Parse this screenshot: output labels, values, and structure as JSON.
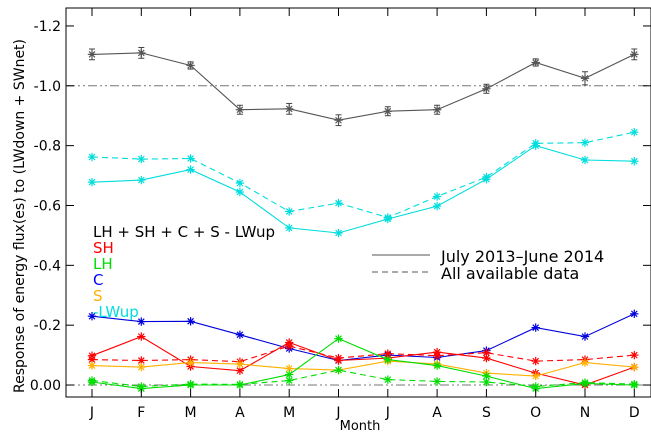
{
  "chart_data": {
    "type": "line",
    "xlabel": "Month",
    "ylabel": "Response of energy flux(es) to (LWdown + SWnet)",
    "categories": [
      "J",
      "F",
      "M",
      "A",
      "M",
      "J",
      "J",
      "A",
      "S",
      "O",
      "N",
      "D"
    ],
    "ylim": [
      0.04,
      -1.26
    ],
    "y_axis_reversed": true,
    "yticks": [
      0.0,
      -0.2,
      -0.4,
      -0.6,
      -0.8,
      -1.0,
      -1.2
    ],
    "ytick_labels": [
      "0.00",
      "-0.2",
      "-0.4",
      "-0.6",
      "-0.8",
      "-1.0",
      "-1.2"
    ],
    "reference_lines": [
      0.0,
      -1.0
    ],
    "grid": false,
    "legend": {
      "placement": "middle-left",
      "series_labels": [
        {
          "text": "LH + SH + C + S - LWup",
          "color": "#000000"
        },
        {
          "text": "SH",
          "color": "#ff0000"
        },
        {
          "text": "LH",
          "color": "#00dd00"
        },
        {
          "text": "C",
          "color": "#0000ff"
        },
        {
          "text": "S",
          "color": "#ffb000"
        },
        {
          "text": "-LWup",
          "color": "#00dddd"
        }
      ],
      "line_styles": [
        {
          "text": "July 2013–June 2014",
          "dash": "solid"
        },
        {
          "text": "All available data",
          "dash": "dashed"
        }
      ]
    },
    "series": [
      {
        "key": "total-solid",
        "color": "#555555",
        "dash": "solid",
        "values": [
          -1.105,
          -1.11,
          -1.068,
          -0.92,
          -0.923,
          -0.885,
          -0.915,
          -0.92,
          -0.99,
          -1.078,
          -1.025,
          -1.105
        ],
        "errors": [
          0.018,
          0.018,
          0.012,
          0.015,
          0.018,
          0.018,
          0.015,
          0.015,
          0.015,
          0.012,
          0.022,
          0.018
        ]
      },
      {
        "key": "lwup-solid",
        "color": "#00dddd",
        "dash": "solid",
        "values": [
          -0.678,
          -0.685,
          -0.72,
          -0.645,
          -0.525,
          -0.508,
          -0.555,
          -0.598,
          -0.688,
          -0.8,
          -0.752,
          -0.748
        ]
      },
      {
        "key": "lwup-dashed",
        "color": "#00dddd",
        "dash": "dashed",
        "values": [
          -0.762,
          -0.755,
          -0.757,
          -0.675,
          -0.58,
          -0.608,
          -0.56,
          -0.63,
          -0.695,
          -0.808,
          -0.81,
          -0.845
        ]
      },
      {
        "key": "c-solid",
        "color": "#0000dd",
        "dash": "solid",
        "values": [
          -0.23,
          -0.212,
          -0.213,
          -0.168,
          -0.122,
          -0.082,
          -0.1,
          -0.092,
          -0.115,
          -0.192,
          -0.162,
          -0.238
        ]
      },
      {
        "key": "sh-solid",
        "color": "#ff0000",
        "dash": "solid",
        "values": [
          -0.098,
          -0.162,
          -0.062,
          -0.048,
          -0.142,
          -0.082,
          -0.09,
          -0.11,
          -0.09,
          -0.04,
          0.0,
          -0.06
        ]
      },
      {
        "key": "sh-dashed",
        "color": "#ff0000",
        "dash": "dashed",
        "values": [
          -0.085,
          -0.082,
          -0.085,
          -0.078,
          -0.13,
          -0.09,
          -0.105,
          -0.098,
          -0.108,
          -0.08,
          -0.085,
          -0.1
        ]
      },
      {
        "key": "s-solid",
        "color": "#ffb000",
        "dash": "solid",
        "values": [
          -0.065,
          -0.06,
          -0.075,
          -0.07,
          -0.055,
          -0.05,
          -0.08,
          -0.07,
          -0.04,
          -0.03,
          -0.075,
          -0.06
        ]
      },
      {
        "key": "lh-solid",
        "color": "#00dd00",
        "dash": "solid",
        "values": [
          -0.01,
          0.012,
          0.0,
          0.0,
          -0.035,
          -0.155,
          -0.085,
          -0.065,
          -0.03,
          0.012,
          -0.005,
          0.0
        ]
      },
      {
        "key": "lh-dashed",
        "color": "#00dd00",
        "dash": "dashed",
        "values": [
          -0.015,
          0.005,
          -0.003,
          -0.002,
          -0.015,
          -0.05,
          -0.018,
          -0.012,
          -0.01,
          0.005,
          -0.008,
          -0.003
        ]
      }
    ]
  }
}
